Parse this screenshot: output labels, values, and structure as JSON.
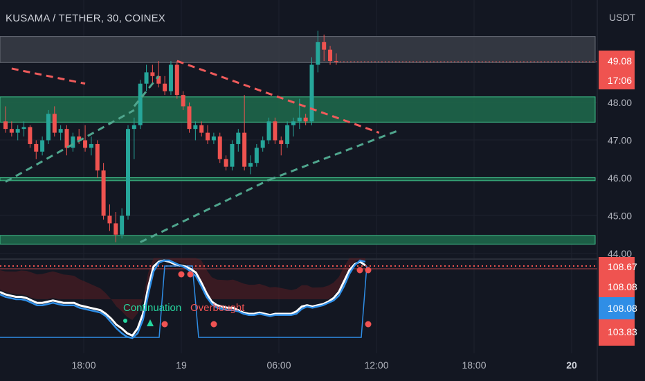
{
  "header": {
    "title": "KUSAMA / TETHER, 30, COINEX"
  },
  "colors": {
    "background": "#131722",
    "up": "#26a69a",
    "down": "#ef5350",
    "zone_green": "#1e6b4c",
    "zone_gray": "#3a3d47",
    "trend_green": "#4fa58d",
    "trend_red": "#f05b5b",
    "osc_white": "#ffffff",
    "osc_blue": "#2f8ee6",
    "signal_green": "#26d7a0",
    "signal_red": "#f05353"
  },
  "chart_data": [
    {
      "type": "candlestick",
      "title": "KUSAMA / TETHER, 30, COINEX",
      "currency": "USDT",
      "ylim": [
        44.0,
        50.0
      ],
      "y_ticks": [
        "44.00",
        "45.00",
        "46.00",
        "47.00",
        "48.00"
      ],
      "x_ticks": [
        "18:00",
        "19",
        "06:00",
        "12:00",
        "18:00",
        "20"
      ],
      "last_price": "49.08",
      "countdown": "17:06",
      "candles": [
        [
          47.5,
          47.9,
          47.2,
          47.3
        ],
        [
          47.3,
          47.5,
          47.1,
          47.2
        ],
        [
          47.2,
          47.4,
          47.0,
          47.3
        ],
        [
          47.3,
          47.5,
          47.1,
          47.35
        ],
        [
          47.35,
          47.4,
          46.8,
          46.9
        ],
        [
          46.9,
          47.0,
          46.5,
          46.7
        ],
        [
          46.7,
          47.1,
          46.6,
          47.0
        ],
        [
          47.0,
          47.8,
          46.9,
          47.7
        ],
        [
          47.7,
          47.9,
          47.1,
          47.2
        ],
        [
          47.2,
          47.4,
          47.0,
          47.3
        ],
        [
          47.3,
          47.4,
          46.6,
          46.8
        ],
        [
          46.8,
          47.2,
          46.7,
          47.1
        ],
        [
          47.1,
          47.3,
          46.9,
          47.0
        ],
        [
          47.0,
          47.4,
          46.7,
          46.8
        ],
        [
          46.8,
          47.1,
          46.6,
          46.9
        ],
        [
          46.9,
          47.0,
          46.0,
          46.2
        ],
        [
          46.2,
          46.4,
          44.9,
          45.0
        ],
        [
          45.0,
          45.3,
          44.6,
          44.8
        ],
        [
          44.8,
          45.1,
          44.3,
          44.5
        ],
        [
          44.5,
          45.2,
          44.4,
          45.0
        ],
        [
          45.0,
          47.4,
          44.9,
          47.3
        ],
        [
          47.3,
          47.6,
          46.5,
          47.4
        ],
        [
          47.4,
          48.6,
          47.3,
          48.5
        ],
        [
          48.5,
          49.0,
          48.3,
          48.8
        ],
        [
          48.8,
          49.0,
          48.5,
          48.7
        ],
        [
          48.7,
          49.1,
          48.4,
          48.5
        ],
        [
          48.5,
          48.7,
          48.2,
          48.3
        ],
        [
          48.3,
          49.1,
          48.2,
          49.0
        ],
        [
          49.0,
          49.1,
          48.1,
          48.2
        ],
        [
          48.2,
          48.3,
          47.8,
          47.9
        ],
        [
          47.9,
          48.0,
          47.2,
          47.3
        ],
        [
          47.3,
          47.5,
          47.0,
          47.4
        ],
        [
          47.4,
          47.5,
          47.1,
          47.2
        ],
        [
          47.2,
          47.4,
          46.9,
          47.0
        ],
        [
          47.0,
          47.2,
          46.9,
          47.1
        ],
        [
          47.1,
          47.2,
          46.4,
          46.5
        ],
        [
          46.5,
          46.6,
          46.2,
          46.3
        ],
        [
          46.3,
          47.0,
          46.2,
          46.9
        ],
        [
          46.9,
          47.3,
          46.7,
          47.2
        ],
        [
          47.2,
          48.2,
          46.2,
          46.3
        ],
        [
          46.3,
          46.6,
          46.1,
          46.4
        ],
        [
          46.4,
          46.9,
          46.3,
          46.8
        ],
        [
          46.8,
          47.1,
          46.7,
          47.0
        ],
        [
          47.0,
          47.6,
          46.9,
          47.5
        ],
        [
          47.5,
          47.6,
          46.9,
          47.0
        ],
        [
          47.0,
          47.1,
          46.6,
          46.9
        ],
        [
          46.9,
          47.5,
          46.8,
          47.4
        ],
        [
          47.4,
          47.6,
          47.1,
          47.5
        ],
        [
          47.5,
          48.1,
          47.3,
          47.6
        ],
        [
          47.6,
          47.7,
          47.4,
          47.5
        ],
        [
          47.5,
          49.2,
          47.4,
          49.0
        ],
        [
          49.0,
          49.9,
          48.8,
          49.6
        ],
        [
          49.6,
          49.8,
          49.1,
          49.4
        ],
        [
          49.4,
          49.5,
          49.0,
          49.1
        ],
        [
          49.1,
          49.3,
          49.0,
          49.08
        ]
      ],
      "zones": [
        {
          "from": 49.06,
          "to": 49.75,
          "kind": "gray"
        },
        {
          "from": 47.48,
          "to": 48.15,
          "kind": "green"
        },
        {
          "from": 45.93,
          "to": 46.01,
          "kind": "green"
        },
        {
          "from": 44.25,
          "to": 44.48,
          "kind": "green"
        }
      ],
      "trendlines": [
        {
          "kind": "green",
          "points": [
            [
              0,
              45.9
            ],
            [
              21,
              47.8
            ]
          ]
        },
        {
          "kind": "green",
          "points": [
            [
              21,
              47.9
            ],
            [
              25,
              48.7
            ]
          ]
        },
        {
          "kind": "green",
          "points": [
            [
              22,
              44.3
            ],
            [
              43,
              45.95
            ]
          ]
        },
        {
          "kind": "green",
          "points": [
            [
              43,
              45.95
            ],
            [
              64,
              47.25
            ]
          ]
        },
        {
          "kind": "red",
          "points": [
            [
              1,
              48.9
            ],
            [
              13,
              48.5
            ]
          ]
        },
        {
          "kind": "red",
          "points": [
            [
              28,
              49.1
            ],
            [
              61,
              47.2
            ]
          ]
        }
      ]
    },
    {
      "type": "line",
      "name": "oscillator",
      "ylim": [
        100,
        110
      ],
      "value_labels": [
        "108.67",
        "108.08",
        "108.08",
        "103.83"
      ],
      "series": [
        {
          "kind": "white",
          "values": [
            105.8,
            105.6,
            105.5,
            105.4,
            105.4,
            105.3,
            105.1,
            104.9,
            104.9,
            105.0,
            105.1,
            105.0,
            104.9,
            104.9,
            104.9,
            104.7,
            104.6,
            104.5,
            104.4,
            104.3,
            104.0,
            103.6,
            103.1,
            102.8,
            102.4,
            102.2,
            102.8,
            104.0,
            106.2,
            107.9,
            108.3,
            108.4,
            108.3,
            108.1,
            108.0,
            107.9,
            107.7,
            107.4,
            106.6,
            105.7,
            105.0,
            104.7,
            104.6,
            104.5,
            104.5,
            104.3,
            104.1,
            104.0,
            104.0,
            104.1,
            104.0,
            103.9,
            104.0,
            104.0,
            104.0,
            104.0,
            104.2,
            104.6,
            104.7,
            104.6,
            104.7,
            104.8,
            105.0,
            105.3,
            105.8,
            106.7,
            107.6,
            108.1,
            108.3,
            108.0
          ]
        },
        {
          "kind": "blue",
          "values": [
            105.6,
            105.4,
            105.3,
            105.2,
            105.2,
            105.1,
            104.9,
            104.7,
            104.7,
            104.8,
            104.9,
            104.8,
            104.7,
            104.7,
            104.7,
            104.5,
            104.4,
            104.3,
            104.2,
            104.1,
            103.8,
            103.3,
            102.8,
            102.4,
            102.1,
            102.0,
            102.4,
            103.5,
            105.6,
            107.5,
            108.2,
            108.4,
            108.4,
            108.2,
            108.0,
            107.8,
            107.5,
            107.1,
            106.3,
            105.4,
            104.8,
            104.5,
            104.4,
            104.3,
            104.3,
            104.2,
            104.0,
            103.9,
            103.9,
            104.0,
            103.9,
            103.8,
            103.9,
            103.9,
            103.9,
            103.9,
            104.0,
            104.4,
            104.6,
            104.5,
            104.6,
            104.7,
            104.9,
            105.1,
            105.5,
            106.3,
            107.3,
            108.0,
            108.4,
            108.3
          ]
        }
      ],
      "signals": [
        {
          "label": "Continuation",
          "kind": "green"
        },
        {
          "label": "Overbought",
          "kind": "red"
        }
      ]
    }
  ]
}
